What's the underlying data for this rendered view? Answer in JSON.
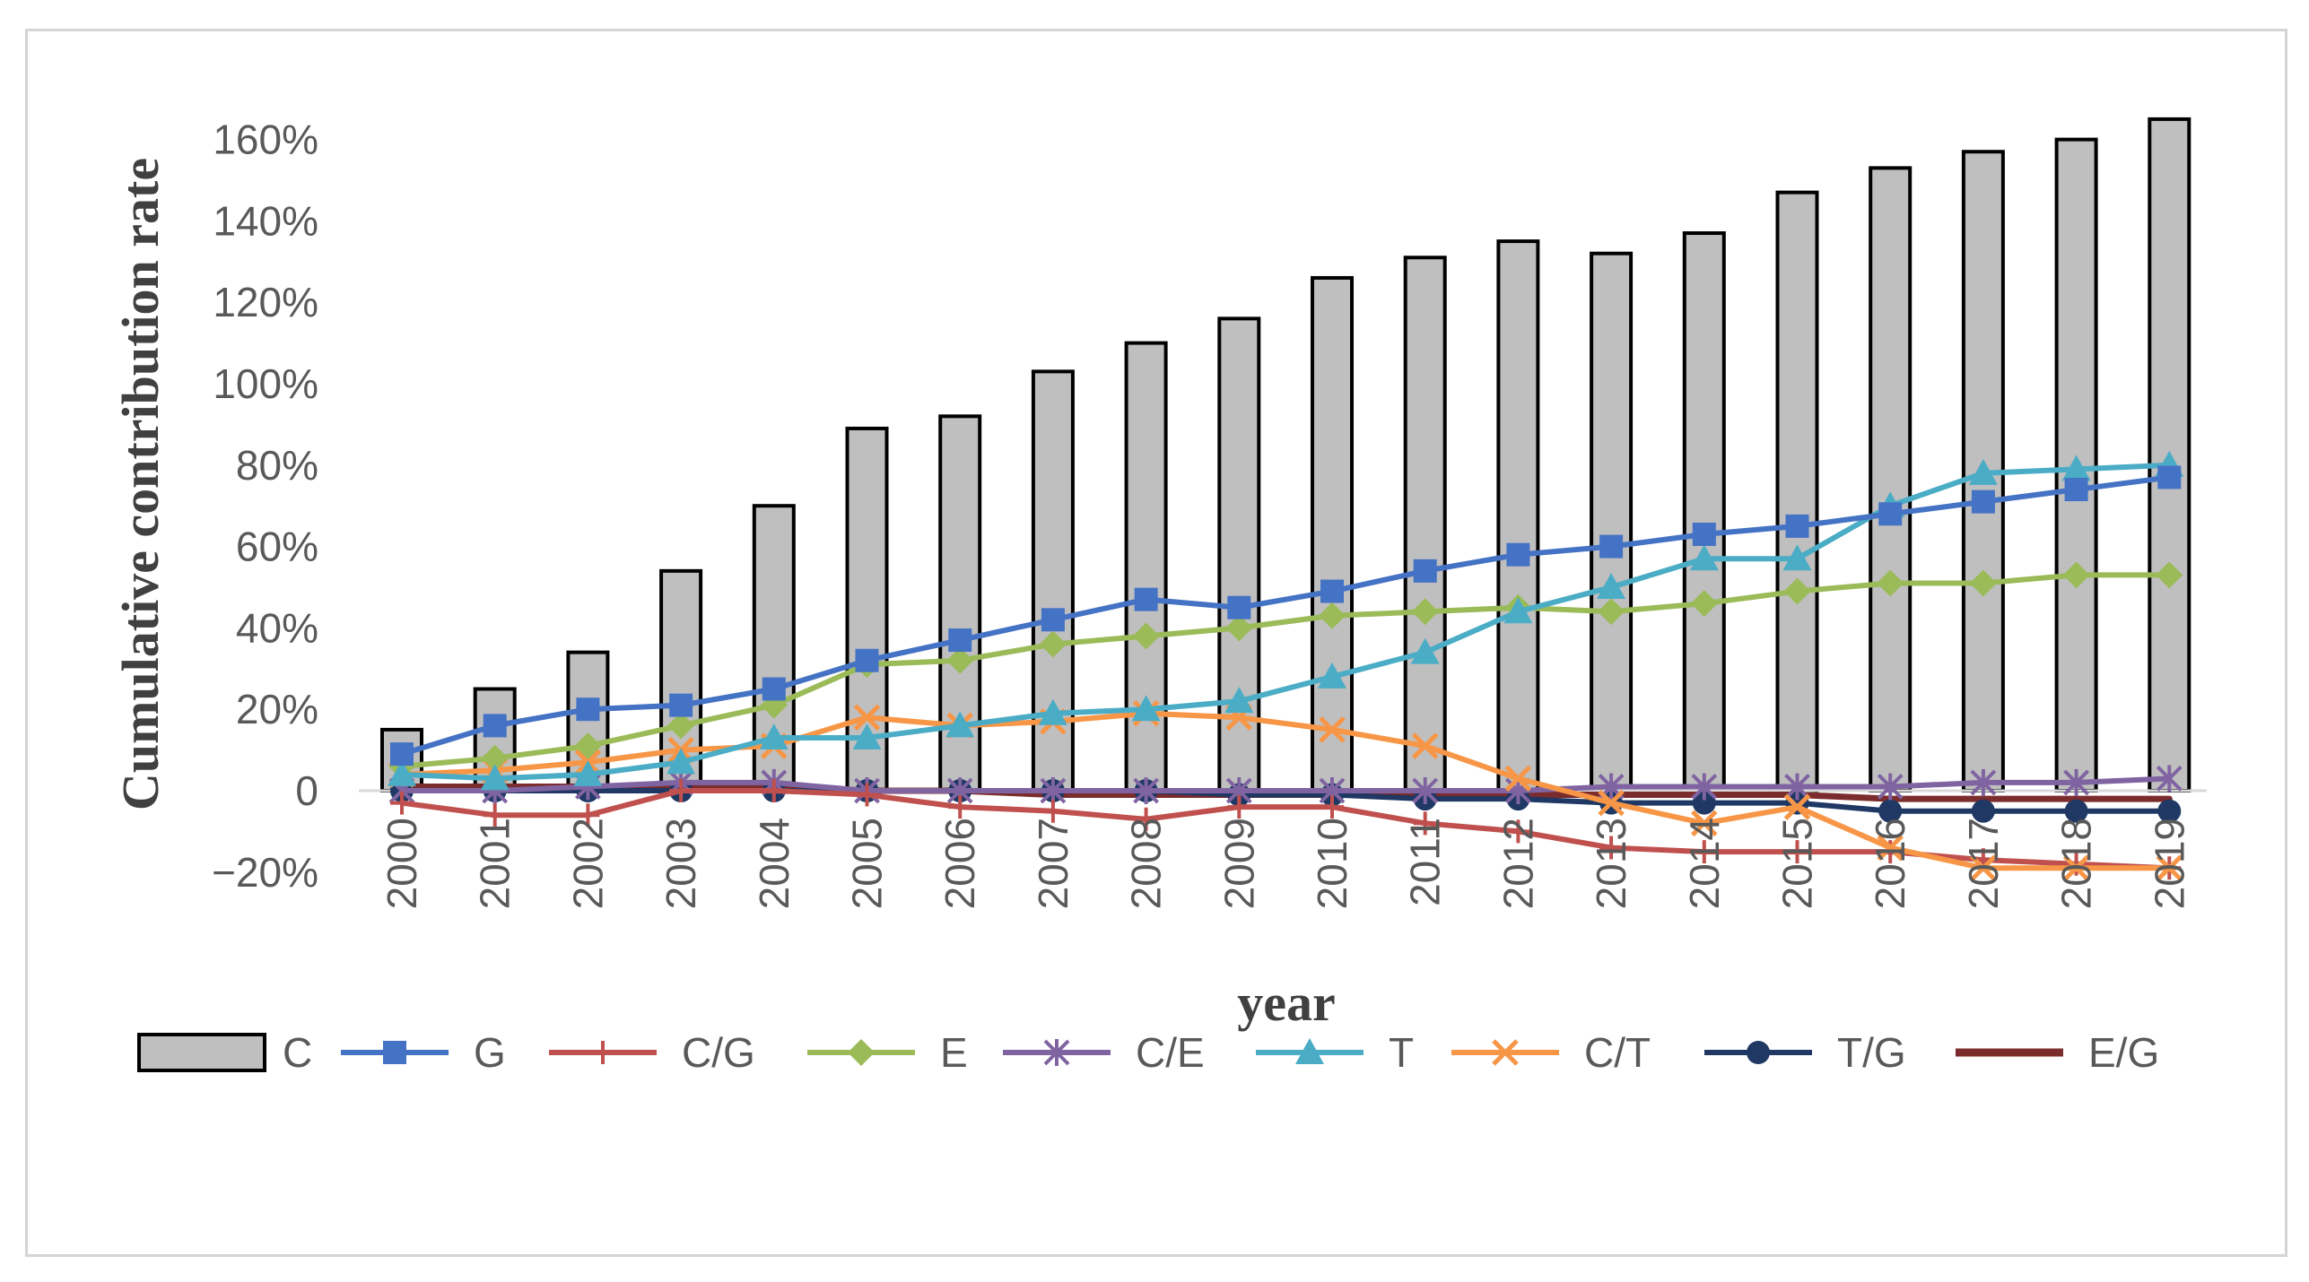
{
  "chart_data": {
    "type": "bar+line",
    "title": "",
    "xlabel": "year",
    "ylabel": "Cumulative contribution rate",
    "ylim": [
      -20,
      170
    ],
    "yticks": [
      -20,
      0,
      20,
      40,
      60,
      80,
      100,
      120,
      140,
      160
    ],
    "ytick_labels": [
      "−20%",
      "0",
      "20%",
      "40%",
      "60%",
      "80%",
      "100%",
      "120%",
      "140%",
      "160%"
    ],
    "categories": [
      "2000",
      "2001",
      "2002",
      "2003",
      "2004",
      "2005",
      "2006",
      "2007",
      "2008",
      "2009",
      "2010",
      "2011",
      "2012",
      "2013",
      "2014",
      "2015",
      "2016",
      "2017",
      "2018",
      "2019"
    ],
    "grid": false,
    "legend_position": "bottom",
    "series": [
      {
        "name": "C",
        "kind": "bar",
        "color": "#bfbfbf",
        "edge": "#000000",
        "values": [
          15,
          25,
          34,
          54,
          70,
          89,
          92,
          103,
          110,
          116,
          126,
          131,
          135,
          132,
          137,
          147,
          153,
          157,
          160,
          165
        ]
      },
      {
        "name": "G",
        "kind": "line",
        "marker": "square",
        "color": "#4472c4",
        "values": [
          9,
          16,
          20,
          21,
          25,
          32,
          37,
          42,
          47,
          45,
          49,
          54,
          58,
          60,
          63,
          65,
          68,
          71,
          74,
          77
        ]
      },
      {
        "name": "C/G",
        "kind": "line",
        "marker": "plus",
        "color": "#c0504d",
        "values": [
          -3,
          -6,
          -6,
          0,
          0,
          -1,
          -4,
          -5,
          -7,
          -4,
          -4,
          -8,
          -10,
          -14,
          -15,
          -15,
          -15,
          -17,
          -18,
          -19
        ]
      },
      {
        "name": "E",
        "kind": "line",
        "marker": "diamond",
        "color": "#9bbb59",
        "values": [
          6,
          8,
          11,
          16,
          21,
          31,
          32,
          36,
          38,
          40,
          43,
          44,
          45,
          44,
          46,
          49,
          51,
          51,
          53,
          53
        ]
      },
      {
        "name": "C/E",
        "kind": "line",
        "marker": "star",
        "color": "#8064a2",
        "values": [
          0,
          0,
          1,
          2,
          2,
          0,
          0,
          0,
          0,
          0,
          0,
          0,
          0,
          1,
          1,
          1,
          1,
          2,
          2,
          3
        ]
      },
      {
        "name": "T",
        "kind": "line",
        "marker": "triangle",
        "color": "#4bacc6",
        "values": [
          4,
          3,
          4,
          7,
          13,
          13,
          16,
          19,
          20,
          22,
          28,
          34,
          44,
          50,
          57,
          57,
          70,
          78,
          79,
          80
        ]
      },
      {
        "name": "C/T",
        "kind": "line",
        "marker": "x",
        "color": "#f79646",
        "values": [
          4,
          5,
          7,
          10,
          11,
          18,
          16,
          17,
          19,
          18,
          15,
          11,
          3,
          -3,
          -8,
          -4,
          -14,
          -19,
          -19,
          -19
        ]
      },
      {
        "name": "T/G",
        "kind": "line",
        "marker": "circle",
        "color": "#1f3864",
        "values": [
          0,
          0,
          0,
          0,
          0,
          0,
          0,
          0,
          0,
          -1,
          -1,
          -2,
          -2,
          -3,
          -3,
          -3,
          -5,
          -5,
          -5,
          -5
        ]
      },
      {
        "name": "E/G",
        "kind": "line",
        "marker": "none",
        "color": "#7b2c2c",
        "values": [
          1,
          1,
          1,
          1,
          1,
          0,
          0,
          -1,
          -1,
          -1,
          -1,
          -1,
          -1,
          -1,
          -1,
          -1,
          -2,
          -2,
          -2,
          -2
        ]
      }
    ]
  }
}
